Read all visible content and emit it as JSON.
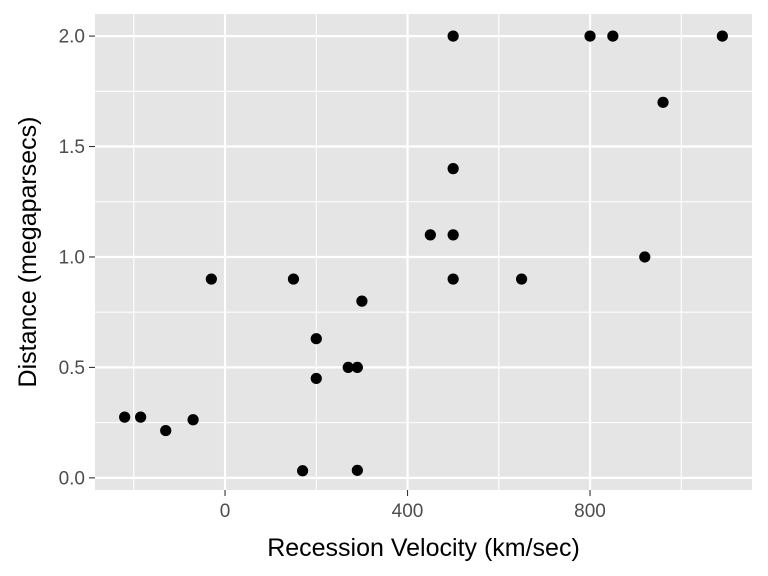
{
  "chart_data": {
    "type": "scatter",
    "xlabel": "Recession Velocity (km/sec)",
    "ylabel": "Distance (megaparsecs)",
    "xlim": [
      -285,
      1155
    ],
    "ylim": [
      -0.055,
      2.1
    ],
    "x_major_ticks": [
      0,
      400,
      800
    ],
    "x_minor_ticks": [
      -200,
      200,
      600,
      1000
    ],
    "y_major_ticks": [
      0.0,
      0.5,
      1.0,
      1.5,
      2.0
    ],
    "y_minor_ticks": [
      0.25,
      0.75,
      1.25,
      1.75
    ],
    "x_tick_labels": [
      "0",
      "400",
      "800"
    ],
    "y_tick_labels": [
      "0.0",
      "0.5",
      "1.0",
      "1.5",
      "2.0"
    ],
    "grid": true,
    "panel_color": "#e5e5e5",
    "grid_color": "#ffffff",
    "point_color": "#000000",
    "points": [
      {
        "x": 170,
        "y": 0.032
      },
      {
        "x": 290,
        "y": 0.034
      },
      {
        "x": -130,
        "y": 0.214
      },
      {
        "x": -70,
        "y": 0.263
      },
      {
        "x": -185,
        "y": 0.275
      },
      {
        "x": -220,
        "y": 0.275
      },
      {
        "x": 200,
        "y": 0.45
      },
      {
        "x": 290,
        "y": 0.5
      },
      {
        "x": 270,
        "y": 0.5
      },
      {
        "x": 200,
        "y": 0.63
      },
      {
        "x": 300,
        "y": 0.8
      },
      {
        "x": -30,
        "y": 0.9
      },
      {
        "x": 650,
        "y": 0.9
      },
      {
        "x": 150,
        "y": 0.9
      },
      {
        "x": 500,
        "y": 0.9
      },
      {
        "x": 920,
        "y": 1.0
      },
      {
        "x": 450,
        "y": 1.1
      },
      {
        "x": 500,
        "y": 1.1
      },
      {
        "x": 500,
        "y": 1.4
      },
      {
        "x": 960,
        "y": 1.7
      },
      {
        "x": 500,
        "y": 2.0
      },
      {
        "x": 850,
        "y": 2.0
      },
      {
        "x": 800,
        "y": 2.0
      },
      {
        "x": 1090,
        "y": 2.0
      }
    ]
  }
}
